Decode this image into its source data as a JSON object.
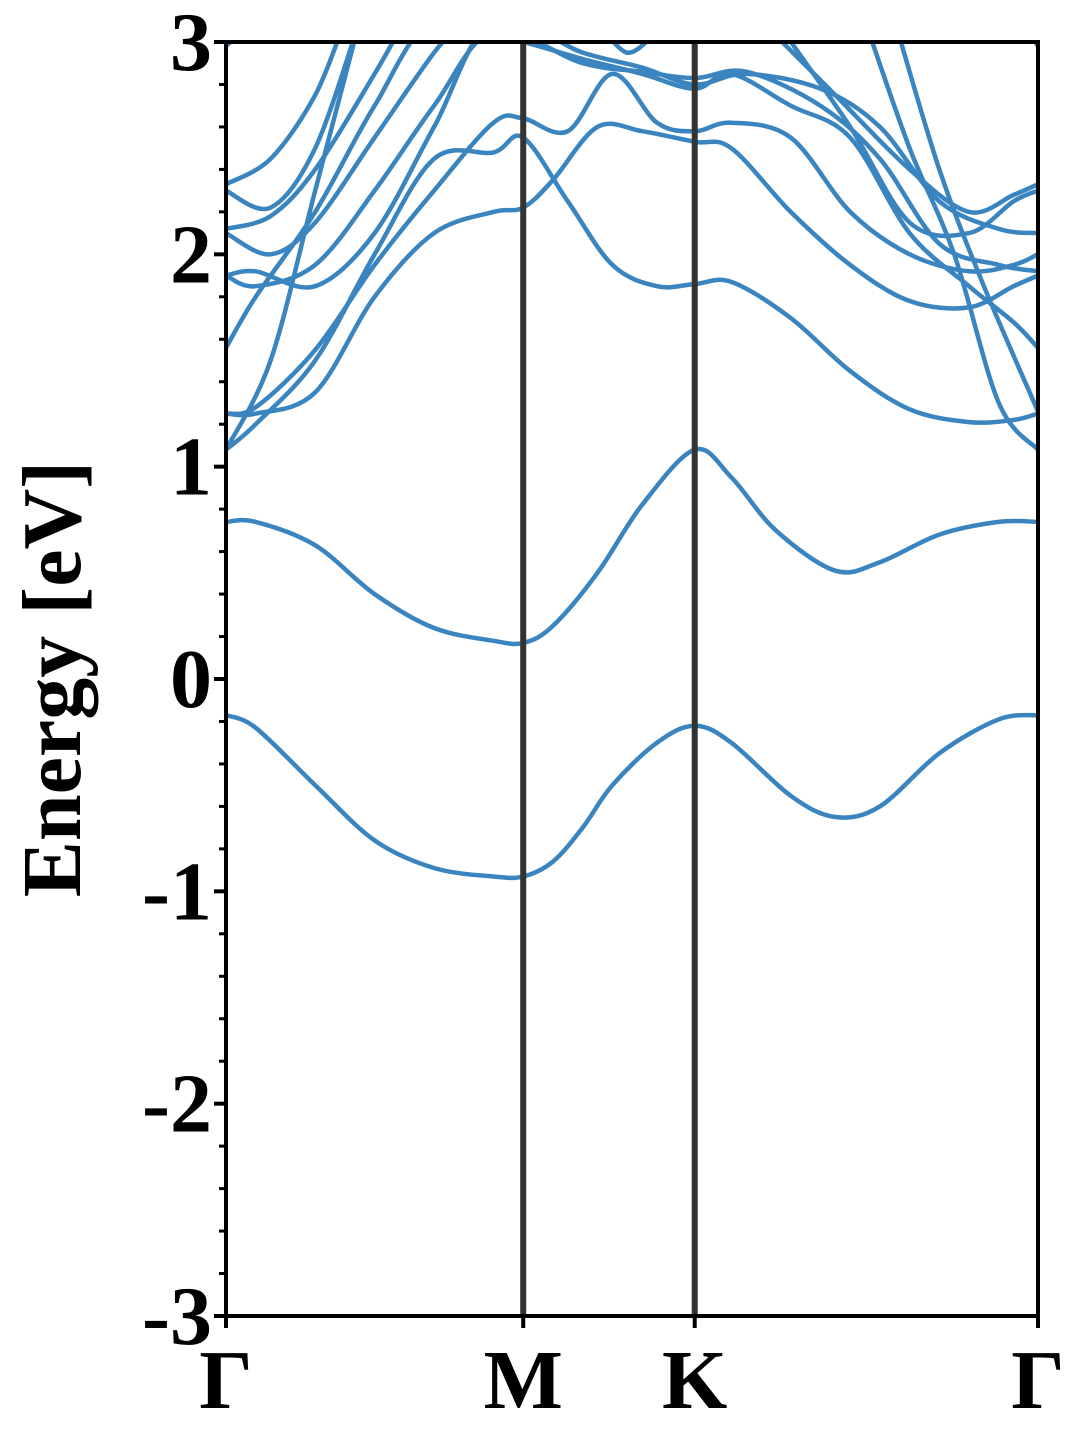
{
  "chart_data": {
    "type": "line",
    "ylabel": "Energy [eV]",
    "ylim": [
      -3,
      3
    ],
    "yticks": [
      "-3",
      "-2",
      "-1",
      "0",
      "1",
      "2",
      "3"
    ],
    "minor_ticks": true,
    "grid": false,
    "legend": "none",
    "line_color": "#3a85bf",
    "kpath_line_color": "#333333",
    "xticks": [
      {
        "label": "Γ",
        "k": 0
      },
      {
        "label": "M",
        "k": 1
      },
      {
        "label": "K",
        "k": 1.577
      },
      {
        "label": "Γ",
        "k": 2.732
      }
    ],
    "series": [
      {
        "values": [
          [
            0,
            -0.17
          ],
          [
            0.1,
            -0.23
          ],
          [
            0.3,
            -0.5
          ],
          [
            0.5,
            -0.76
          ],
          [
            0.7,
            -0.89
          ],
          [
            0.9,
            -0.93
          ],
          [
            1,
            -0.93
          ],
          [
            1.1,
            -0.86
          ],
          [
            1.2,
            -0.7
          ],
          [
            1.3,
            -0.5
          ],
          [
            1.45,
            -0.3
          ],
          [
            1.577,
            -0.22
          ],
          [
            1.7,
            -0.3
          ],
          [
            1.9,
            -0.55
          ],
          [
            2.05,
            -0.65
          ],
          [
            2.2,
            -0.6
          ],
          [
            2.4,
            -0.35
          ],
          [
            2.6,
            -0.19
          ],
          [
            2.732,
            -0.17
          ]
        ]
      },
      {
        "values": [
          [
            0,
            0.74
          ],
          [
            0.1,
            0.74
          ],
          [
            0.3,
            0.63
          ],
          [
            0.5,
            0.4
          ],
          [
            0.7,
            0.24
          ],
          [
            0.9,
            0.18
          ],
          [
            1,
            0.17
          ],
          [
            1.1,
            0.25
          ],
          [
            1.25,
            0.5
          ],
          [
            1.4,
            0.82
          ],
          [
            1.577,
            1.08
          ],
          [
            1.7,
            0.95
          ],
          [
            1.85,
            0.7
          ],
          [
            2.05,
            0.51
          ],
          [
            2.2,
            0.55
          ],
          [
            2.4,
            0.68
          ],
          [
            2.6,
            0.74
          ],
          [
            2.732,
            0.74
          ]
        ]
      },
      {
        "values": [
          [
            0,
            1.08
          ],
          [
            0.1,
            1.2
          ],
          [
            0.3,
            1.5
          ],
          [
            0.5,
            2.0
          ],
          [
            0.7,
            2.45
          ],
          [
            0.9,
            2.48
          ],
          [
            1,
            2.55
          ],
          [
            1.15,
            2.25
          ],
          [
            1.3,
            1.95
          ],
          [
            1.45,
            1.85
          ],
          [
            1.577,
            1.86
          ],
          [
            1.7,
            1.87
          ],
          [
            1.9,
            1.7
          ],
          [
            2.1,
            1.45
          ],
          [
            2.3,
            1.27
          ],
          [
            2.5,
            1.21
          ],
          [
            2.65,
            1.22
          ],
          [
            2.732,
            1.25
          ]
        ]
      },
      {
        "values": [
          [
            0,
            1.25
          ],
          [
            0.1,
            1.25
          ],
          [
            0.3,
            1.35
          ],
          [
            0.5,
            1.8
          ],
          [
            0.7,
            2.1
          ],
          [
            0.9,
            2.2
          ],
          [
            1,
            2.22
          ],
          [
            1.1,
            2.35
          ],
          [
            1.25,
            2.6
          ],
          [
            1.4,
            2.58
          ],
          [
            1.577,
            2.53
          ],
          [
            1.7,
            2.5
          ],
          [
            1.9,
            2.2
          ],
          [
            2.1,
            1.95
          ],
          [
            2.3,
            1.78
          ],
          [
            2.5,
            1.75
          ],
          [
            2.65,
            1.85
          ],
          [
            2.732,
            1.9
          ]
        ]
      },
      {
        "values": [
          [
            0,
            1.25
          ],
          [
            0.1,
            1.28
          ],
          [
            0.3,
            1.55
          ],
          [
            0.5,
            1.95
          ],
          [
            0.7,
            2.3
          ],
          [
            0.9,
            2.62
          ],
          [
            1,
            2.64
          ],
          [
            1.15,
            2.58
          ],
          [
            1.3,
            2.85
          ],
          [
            1.45,
            2.62
          ],
          [
            1.577,
            2.58
          ],
          [
            1.7,
            2.62
          ],
          [
            1.9,
            2.55
          ],
          [
            2.1,
            2.2
          ],
          [
            2.3,
            2.0
          ],
          [
            2.5,
            1.92
          ],
          [
            2.65,
            1.95
          ],
          [
            2.732,
            2.0
          ]
        ]
      },
      {
        "values": [
          [
            0,
            1.56
          ],
          [
            0.1,
            1.8
          ],
          [
            0.3,
            2.2
          ],
          [
            0.5,
            2.7
          ],
          [
            0.7,
            3.1
          ],
          [
            1,
            3.0
          ],
          [
            1.2,
            2.92
          ],
          [
            1.4,
            2.85
          ],
          [
            1.577,
            2.78
          ],
          [
            1.7,
            2.85
          ],
          [
            1.9,
            2.7
          ],
          [
            2.1,
            2.55
          ],
          [
            2.3,
            2.1
          ],
          [
            2.5,
            1.85
          ],
          [
            2.65,
            1.68
          ],
          [
            2.732,
            1.56
          ]
        ]
      },
      {
        "values": [
          [
            0,
            1.9
          ],
          [
            0.1,
            1.92
          ],
          [
            0.3,
            1.85
          ],
          [
            0.5,
            2.1
          ],
          [
            0.7,
            2.6
          ],
          [
            0.9,
            3.1
          ],
          [
            1.2,
            2.95
          ],
          [
            1.4,
            2.88
          ],
          [
            1.577,
            2.8
          ],
          [
            1.75,
            2.85
          ],
          [
            2.0,
            2.78
          ],
          [
            2.2,
            2.6
          ],
          [
            2.4,
            2.25
          ],
          [
            2.6,
            2.12
          ],
          [
            2.732,
            2.1
          ]
        ]
      },
      {
        "values": [
          [
            0,
            1.9
          ],
          [
            0.1,
            1.85
          ],
          [
            0.3,
            1.95
          ],
          [
            0.5,
            2.3
          ],
          [
            0.7,
            2.7
          ],
          [
            0.9,
            3.05
          ],
          [
            1.2,
            2.9
          ],
          [
            1.4,
            2.86
          ],
          [
            1.577,
            2.83
          ],
          [
            1.75,
            2.86
          ],
          [
            2.0,
            2.7
          ],
          [
            2.2,
            2.45
          ],
          [
            2.4,
            2.05
          ],
          [
            2.6,
            1.95
          ],
          [
            2.732,
            1.92
          ]
        ]
      },
      {
        "values": [
          [
            0,
            2.1
          ],
          [
            0.15,
            2.0
          ],
          [
            0.3,
            2.15
          ],
          [
            0.5,
            2.55
          ],
          [
            0.7,
            2.95
          ],
          [
            0.8,
            3.1
          ]
        ]
      },
      {
        "values": [
          [
            0,
            2.12
          ],
          [
            0.15,
            2.18
          ],
          [
            0.3,
            2.4
          ],
          [
            0.5,
            2.85
          ],
          [
            0.6,
            3.1
          ]
        ]
      },
      {
        "values": [
          [
            0,
            2.3
          ],
          [
            0.15,
            2.22
          ],
          [
            0.3,
            2.5
          ],
          [
            0.45,
            3.1
          ]
        ]
      },
      {
        "values": [
          [
            0,
            2.33
          ],
          [
            0.15,
            2.45
          ],
          [
            0.3,
            2.75
          ],
          [
            0.4,
            3.1
          ]
        ]
      },
      {
        "values": [
          [
            0,
            2.98
          ],
          [
            0.05,
            3.05
          ]
        ]
      },
      {
        "values": [
          [
            0,
            1.08
          ],
          [
            0.15,
            1.5
          ],
          [
            0.3,
            2.3
          ],
          [
            0.45,
            3.1
          ]
        ]
      },
      {
        "values": [
          [
            1.25,
            3.1
          ],
          [
            1.35,
            2.95
          ],
          [
            1.45,
            3.05
          ]
        ]
      },
      {
        "values": [
          [
            2.15,
            3.1
          ],
          [
            2.3,
            2.5
          ],
          [
            2.45,
            2.0
          ],
          [
            2.6,
            1.3
          ],
          [
            2.732,
            1.08
          ]
        ]
      },
      {
        "values": [
          [
            2.25,
            3.1
          ],
          [
            2.4,
            2.4
          ],
          [
            2.55,
            1.85
          ],
          [
            2.732,
            1.26
          ]
        ]
      },
      {
        "values": [
          [
            1.85,
            3.1
          ],
          [
            2.1,
            2.6
          ],
          [
            2.3,
            2.15
          ],
          [
            2.5,
            2.1
          ],
          [
            2.65,
            2.25
          ],
          [
            2.732,
            2.3
          ]
        ]
      },
      {
        "values": [
          [
            1.8,
            3.1
          ],
          [
            2.05,
            2.75
          ],
          [
            2.3,
            2.4
          ],
          [
            2.5,
            2.2
          ],
          [
            2.65,
            2.28
          ],
          [
            2.732,
            2.33
          ]
        ]
      },
      {
        "values": [
          [
            2.7,
            3.05
          ],
          [
            2.732,
            2.98
          ]
        ]
      }
    ]
  }
}
